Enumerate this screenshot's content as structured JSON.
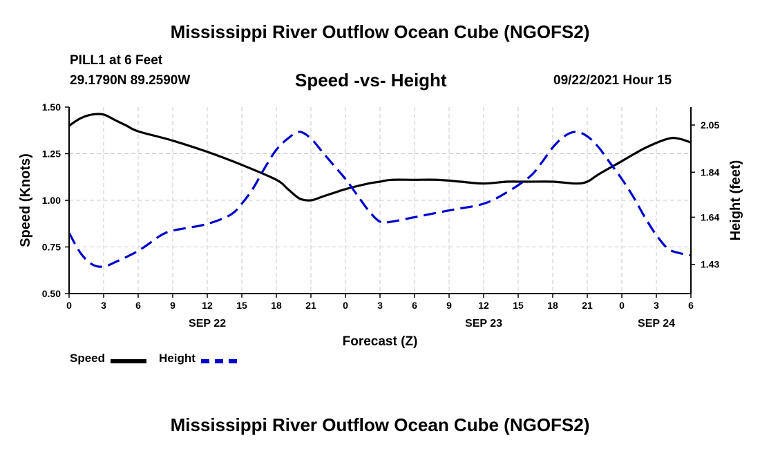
{
  "header": {
    "title": "Mississippi River Outflow Ocean Cube (NGOFS2)",
    "station": "PILL1 at 6 Feet",
    "coordinates": "29.1790N  89.2590W",
    "subtitle": "Speed -vs- Height",
    "datetime": "09/22/2021 Hour 15"
  },
  "footer": {
    "title": "Mississippi River Outflow Ocean Cube (NGOFS2)"
  },
  "legend": {
    "speed_label": "Speed",
    "height_label": "Height",
    "speed_color": "#000000",
    "height_color": "#0000cc"
  },
  "chart_data": {
    "type": "line",
    "title": "Speed -vs- Height",
    "xlabel": "Forecast (Z)",
    "ylabel": "Speed (Knots)",
    "y2label": "Height (feet)",
    "x_hours_from_start": [
      0,
      48
    ],
    "x_tick_labels": [
      "0",
      "3",
      "6",
      "9",
      "12",
      "15",
      "18",
      "21",
      "0",
      "3",
      "6",
      "9",
      "12",
      "15",
      "18",
      "21",
      "0",
      "3",
      "6"
    ],
    "x_tick_hours": [
      0,
      3,
      6,
      9,
      12,
      15,
      18,
      21,
      24,
      27,
      30,
      33,
      36,
      39,
      42,
      45,
      48,
      51,
      54
    ],
    "x_max_hour": 54,
    "date_labels": [
      {
        "label": "SEP 22",
        "hour": 12
      },
      {
        "label": "SEP 23",
        "hour": 36
      },
      {
        "label": "SEP 24",
        "hour": 51
      }
    ],
    "ylim": [
      0.5,
      1.5
    ],
    "y_ticks": [
      "0.50",
      "0.75",
      "1.00",
      "1.25",
      "1.50"
    ],
    "y_tick_values": [
      0.5,
      0.75,
      1.0,
      1.25,
      1.5
    ],
    "y2lim": [
      1.3,
      2.13
    ],
    "y2_ticks": [
      "1.43",
      "1.64",
      "1.84",
      "2.05"
    ],
    "y2_tick_values": [
      1.43,
      1.64,
      1.84,
      2.05
    ],
    "grid": true,
    "series": [
      {
        "name": "Speed",
        "axis": "left",
        "color": "#000000",
        "style": "solid",
        "x": [
          0,
          1,
          2,
          3,
          4,
          5,
          6,
          9,
          12,
          15,
          18,
          19,
          20,
          21,
          22,
          23,
          24,
          26,
          27,
          28,
          30,
          32,
          34,
          36,
          38,
          39,
          40,
          42,
          44,
          45,
          46,
          48,
          50,
          52,
          53,
          54
        ],
        "values": [
          1.4,
          1.44,
          1.46,
          1.46,
          1.43,
          1.4,
          1.37,
          1.32,
          1.26,
          1.19,
          1.11,
          1.06,
          1.01,
          1.0,
          1.02,
          1.04,
          1.06,
          1.09,
          1.1,
          1.11,
          1.11,
          1.11,
          1.1,
          1.09,
          1.1,
          1.1,
          1.1,
          1.1,
          1.09,
          1.1,
          1.14,
          1.21,
          1.28,
          1.33,
          1.33,
          1.31
        ]
      },
      {
        "name": "Height",
        "axis": "right",
        "color": "#0000cc",
        "style": "dashed",
        "x": [
          0,
          1,
          2,
          3,
          4,
          6,
          8,
          9,
          10,
          12,
          14,
          15,
          16,
          17,
          18,
          19,
          20,
          21,
          22,
          23,
          24,
          25,
          26,
          27,
          28,
          30,
          33,
          36,
          38,
          40,
          41,
          42,
          43,
          44,
          45,
          46,
          47,
          48,
          49,
          50,
          51,
          52,
          53,
          54
        ],
        "values": [
          1.57,
          1.48,
          1.43,
          1.42,
          1.44,
          1.49,
          1.56,
          1.58,
          1.59,
          1.61,
          1.65,
          1.7,
          1.77,
          1.86,
          1.94,
          1.99,
          2.02,
          1.99,
          1.93,
          1.87,
          1.81,
          1.74,
          1.67,
          1.62,
          1.62,
          1.64,
          1.67,
          1.7,
          1.75,
          1.82,
          1.88,
          1.95,
          2.0,
          2.02,
          2.0,
          1.95,
          1.88,
          1.81,
          1.73,
          1.64,
          1.56,
          1.5,
          1.48,
          1.47
        ]
      }
    ]
  }
}
